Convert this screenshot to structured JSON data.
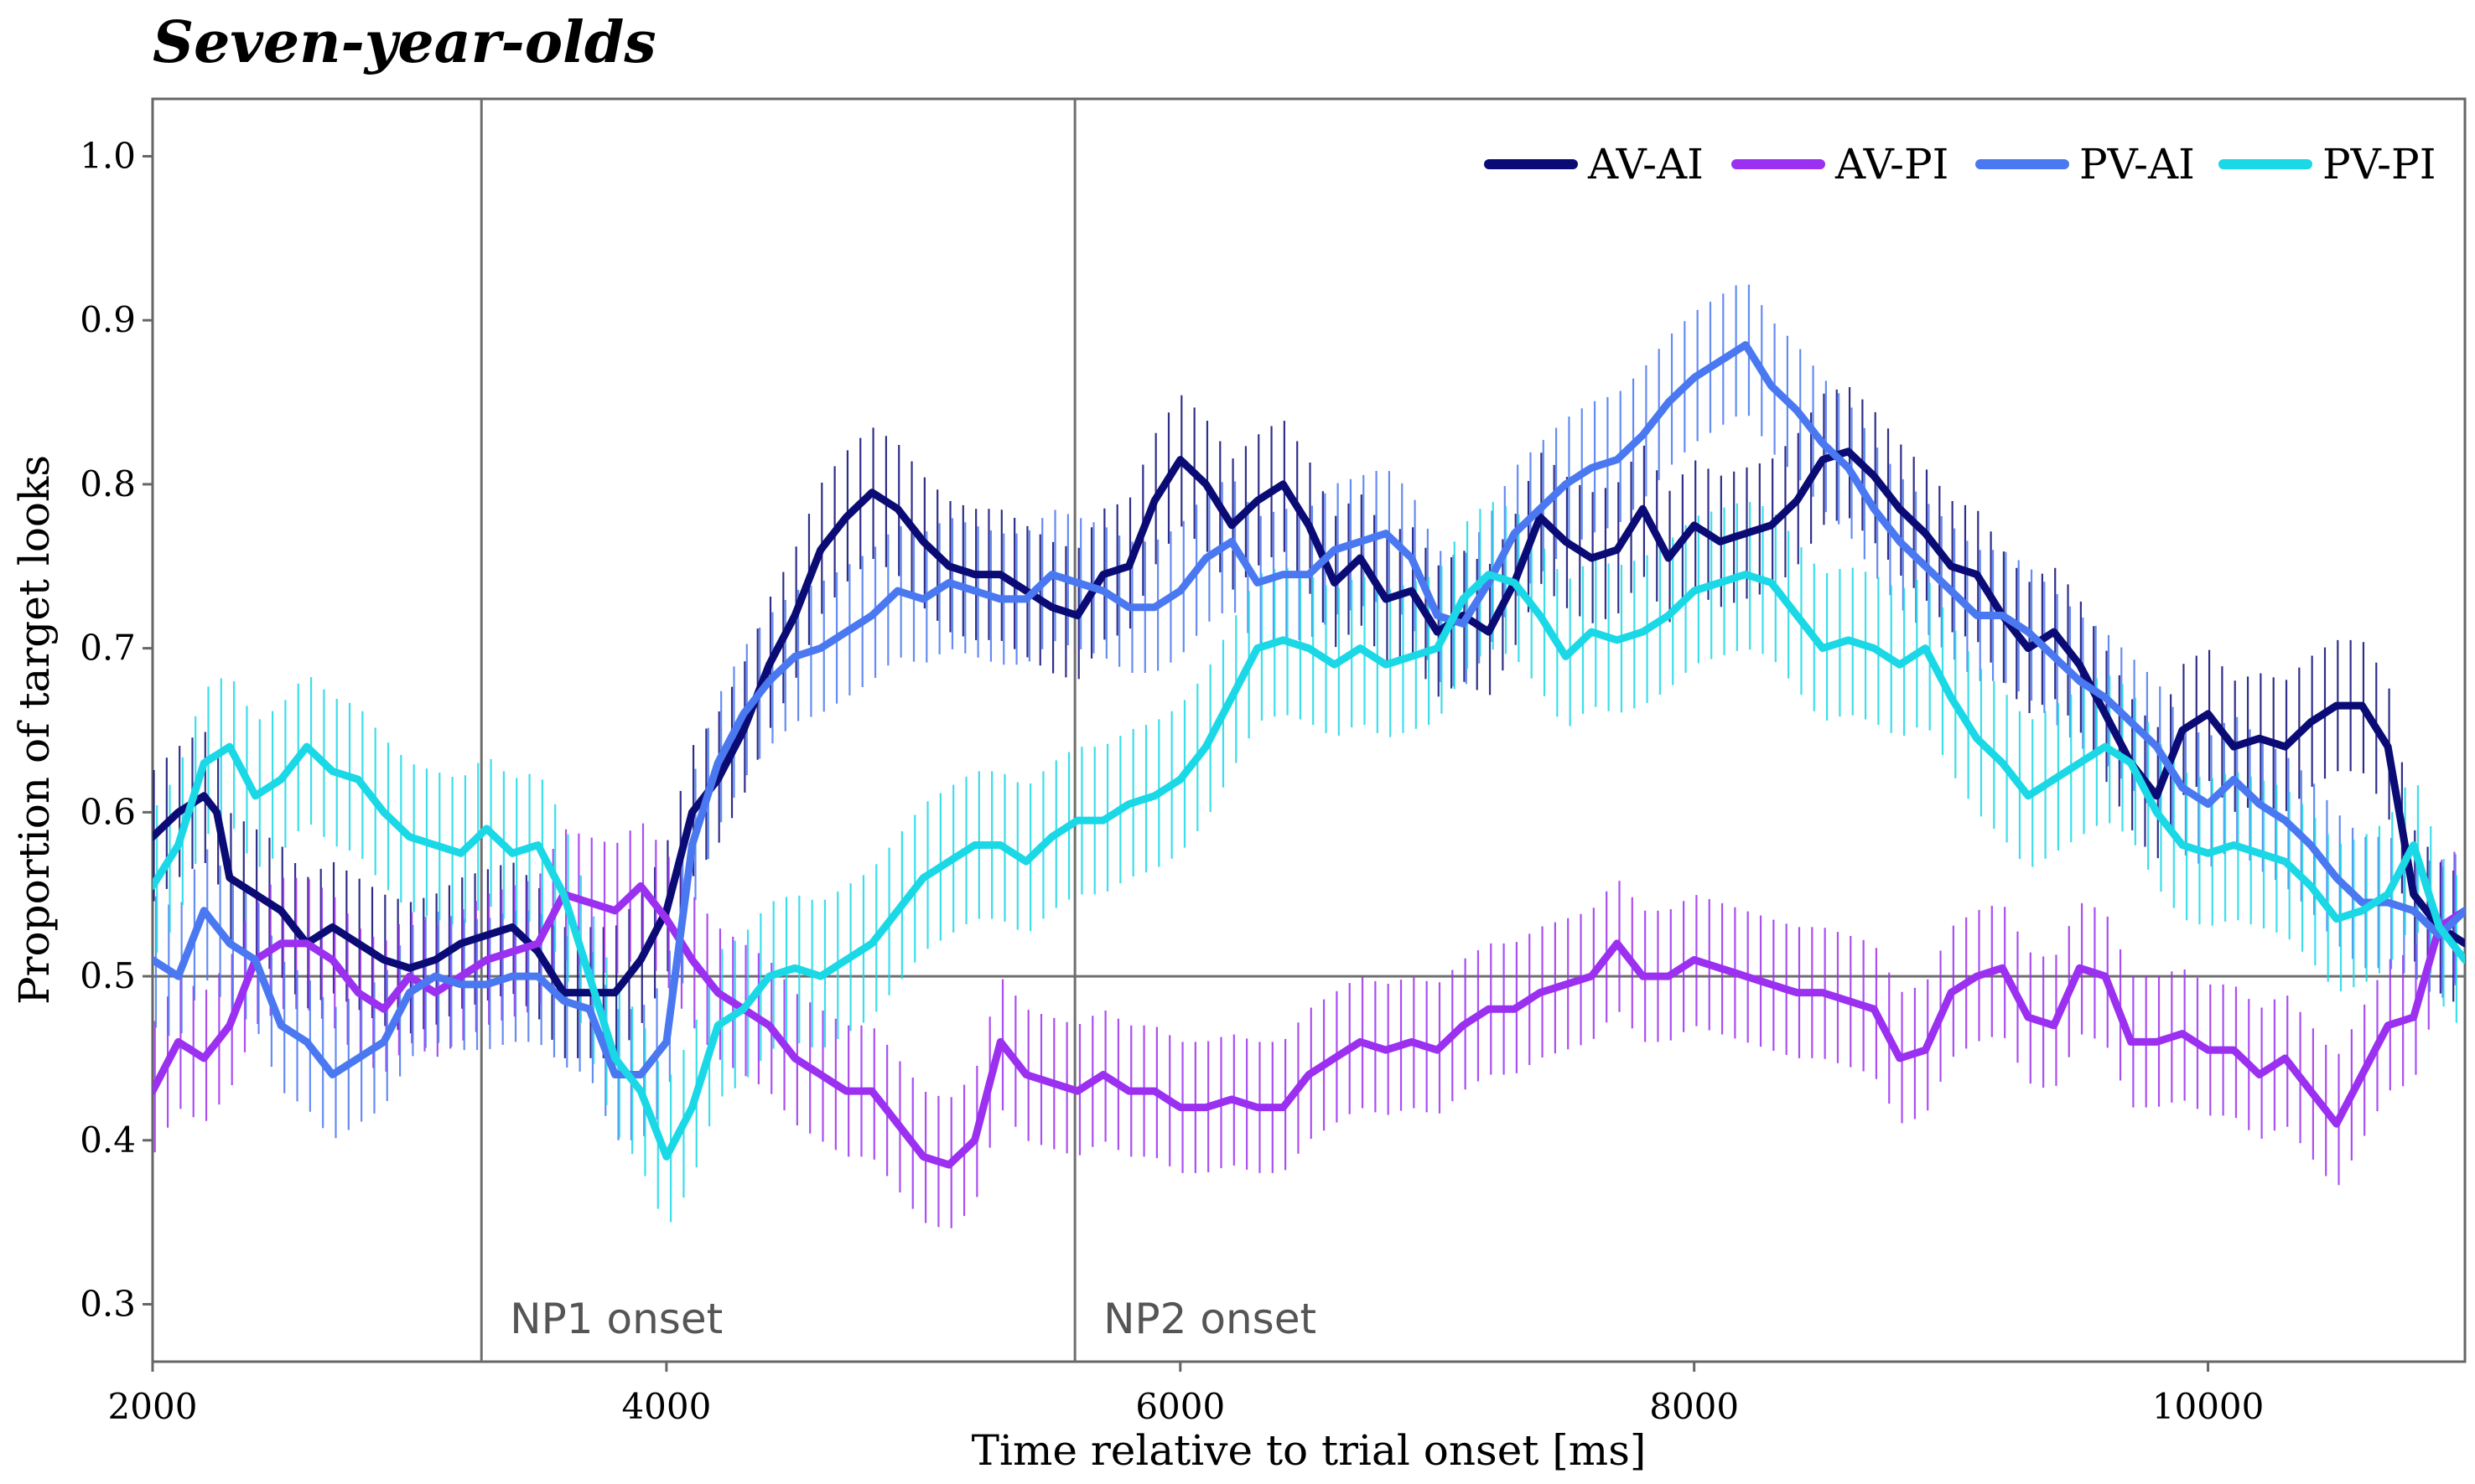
{
  "chart_data": {
    "type": "line",
    "title": "Seven-year-olds",
    "xlabel": "Time relative to trial onset [ms]",
    "ylabel": "Proportion of target looks",
    "xlim": [
      2000,
      11000
    ],
    "ylim": [
      0.265,
      1.035
    ],
    "x_ticks": [
      2000,
      4000,
      6000,
      8000,
      10000
    ],
    "y_ticks": [
      0.3,
      0.4,
      0.5,
      0.6,
      0.7,
      0.8,
      0.9,
      1.0
    ],
    "y_tick_labels": [
      "0.3",
      "0.4",
      "0.5",
      "0.6",
      "0.7",
      "0.8",
      "0.9",
      "1.0"
    ],
    "grid": false,
    "legend_position": "top-right",
    "reference_lines": {
      "horizontal": 0.5,
      "vertical": [
        {
          "x": 3280,
          "label": "NP1 onset"
        },
        {
          "x": 5590,
          "label": "NP2 onset"
        }
      ]
    },
    "error_bars": "vertical",
    "series": [
      {
        "name": "AV-AI",
        "color": "#0b0b75",
        "err": 0.04,
        "x": [
          2000,
          2100,
          2200,
          2250,
          2300,
          2400,
          2500,
          2600,
          2700,
          2800,
          2900,
          3000,
          3100,
          3200,
          3300,
          3400,
          3500,
          3600,
          3700,
          3800,
          3900,
          4000,
          4100,
          4200,
          4300,
          4400,
          4500,
          4600,
          4700,
          4800,
          4900,
          5000,
          5100,
          5200,
          5300,
          5400,
          5500,
          5600,
          5700,
          5800,
          5900,
          6000,
          6100,
          6200,
          6300,
          6400,
          6500,
          6600,
          6700,
          6800,
          6900,
          7000,
          7100,
          7200,
          7300,
          7400,
          7500,
          7600,
          7700,
          7800,
          7900,
          8000,
          8100,
          8200,
          8300,
          8400,
          8500,
          8600,
          8700,
          8800,
          8900,
          9000,
          9100,
          9200,
          9300,
          9400,
          9500,
          9600,
          9700,
          9800,
          9900,
          10000,
          10100,
          10200,
          10300,
          10400,
          10500,
          10600,
          10700,
          10800,
          10900,
          11000
        ],
        "y": [
          0.585,
          0.6,
          0.61,
          0.6,
          0.56,
          0.55,
          0.54,
          0.52,
          0.53,
          0.52,
          0.51,
          0.505,
          0.51,
          0.52,
          0.525,
          0.53,
          0.515,
          0.49,
          0.49,
          0.49,
          0.51,
          0.54,
          0.6,
          0.62,
          0.65,
          0.69,
          0.72,
          0.76,
          0.78,
          0.795,
          0.785,
          0.765,
          0.75,
          0.745,
          0.745,
          0.735,
          0.725,
          0.72,
          0.745,
          0.75,
          0.79,
          0.815,
          0.8,
          0.775,
          0.79,
          0.8,
          0.775,
          0.74,
          0.755,
          0.73,
          0.735,
          0.71,
          0.72,
          0.71,
          0.74,
          0.78,
          0.765,
          0.755,
          0.76,
          0.785,
          0.755,
          0.775,
          0.765,
          0.77,
          0.775,
          0.79,
          0.815,
          0.82,
          0.805,
          0.785,
          0.77,
          0.75,
          0.745,
          0.72,
          0.7,
          0.71,
          0.69,
          0.66,
          0.63,
          0.61,
          0.65,
          0.66,
          0.64,
          0.645,
          0.64,
          0.655,
          0.665,
          0.665,
          0.64,
          0.55,
          0.53,
          0.52
        ]
      },
      {
        "name": "AV-PI",
        "color": "#9b30f0",
        "err": 0.04,
        "x": [
          2000,
          2100,
          2200,
          2300,
          2400,
          2500,
          2600,
          2700,
          2800,
          2900,
          3000,
          3100,
          3200,
          3300,
          3400,
          3500,
          3600,
          3700,
          3800,
          3900,
          4000,
          4100,
          4200,
          4300,
          4400,
          4500,
          4600,
          4700,
          4800,
          4900,
          5000,
          5100,
          5200,
          5300,
          5400,
          5500,
          5600,
          5700,
          5800,
          5900,
          6000,
          6100,
          6200,
          6300,
          6400,
          6500,
          6600,
          6700,
          6800,
          6900,
          7000,
          7100,
          7200,
          7300,
          7400,
          7500,
          7600,
          7700,
          7800,
          7900,
          8000,
          8100,
          8200,
          8300,
          8400,
          8500,
          8600,
          8700,
          8800,
          8900,
          9000,
          9100,
          9200,
          9300,
          9400,
          9500,
          9600,
          9700,
          9800,
          9900,
          10000,
          10100,
          10200,
          10300,
          10400,
          10500,
          10600,
          10700,
          10800,
          10900,
          11000
        ],
        "y": [
          0.43,
          0.46,
          0.45,
          0.47,
          0.51,
          0.52,
          0.52,
          0.51,
          0.49,
          0.48,
          0.5,
          0.49,
          0.5,
          0.51,
          0.515,
          0.52,
          0.55,
          0.545,
          0.54,
          0.555,
          0.535,
          0.51,
          0.49,
          0.48,
          0.47,
          0.45,
          0.44,
          0.43,
          0.43,
          0.41,
          0.39,
          0.385,
          0.4,
          0.46,
          0.44,
          0.435,
          0.43,
          0.44,
          0.43,
          0.43,
          0.42,
          0.42,
          0.425,
          0.42,
          0.42,
          0.44,
          0.45,
          0.46,
          0.455,
          0.46,
          0.455,
          0.47,
          0.48,
          0.48,
          0.49,
          0.495,
          0.5,
          0.52,
          0.5,
          0.5,
          0.51,
          0.505,
          0.5,
          0.495,
          0.49,
          0.49,
          0.485,
          0.48,
          0.45,
          0.455,
          0.49,
          0.5,
          0.505,
          0.475,
          0.47,
          0.505,
          0.5,
          0.46,
          0.46,
          0.465,
          0.455,
          0.455,
          0.44,
          0.45,
          0.43,
          0.41,
          0.44,
          0.47,
          0.475,
          0.53,
          0.54
        ]
      },
      {
        "name": "PV-AI",
        "color": "#4a78f0",
        "err": 0.04,
        "x": [
          2000,
          2100,
          2200,
          2300,
          2400,
          2500,
          2600,
          2700,
          2800,
          2900,
          3000,
          3100,
          3200,
          3300,
          3400,
          3500,
          3600,
          3700,
          3800,
          3900,
          4000,
          4100,
          4200,
          4300,
          4400,
          4500,
          4600,
          4700,
          4800,
          4900,
          5000,
          5100,
          5200,
          5300,
          5400,
          5500,
          5600,
          5700,
          5800,
          5900,
          6000,
          6100,
          6200,
          6300,
          6400,
          6500,
          6600,
          6700,
          6800,
          6900,
          7000,
          7100,
          7200,
          7300,
          7400,
          7500,
          7600,
          7700,
          7800,
          7900,
          8000,
          8100,
          8200,
          8300,
          8400,
          8500,
          8600,
          8700,
          8800,
          8900,
          9000,
          9100,
          9200,
          9300,
          9400,
          9500,
          9600,
          9700,
          9800,
          9900,
          10000,
          10100,
          10200,
          10300,
          10400,
          10500,
          10600,
          10700,
          10800,
          10900,
          11000
        ],
        "y": [
          0.51,
          0.5,
          0.54,
          0.52,
          0.51,
          0.47,
          0.46,
          0.44,
          0.45,
          0.46,
          0.49,
          0.5,
          0.495,
          0.495,
          0.5,
          0.5,
          0.485,
          0.48,
          0.44,
          0.44,
          0.46,
          0.58,
          0.63,
          0.66,
          0.68,
          0.695,
          0.7,
          0.71,
          0.72,
          0.735,
          0.73,
          0.74,
          0.735,
          0.73,
          0.73,
          0.745,
          0.74,
          0.735,
          0.725,
          0.725,
          0.735,
          0.755,
          0.765,
          0.74,
          0.745,
          0.745,
          0.76,
          0.765,
          0.77,
          0.755,
          0.72,
          0.715,
          0.74,
          0.77,
          0.785,
          0.8,
          0.81,
          0.815,
          0.83,
          0.85,
          0.865,
          0.875,
          0.885,
          0.86,
          0.845,
          0.825,
          0.81,
          0.785,
          0.765,
          0.75,
          0.735,
          0.72,
          0.72,
          0.71,
          0.695,
          0.68,
          0.67,
          0.655,
          0.64,
          0.615,
          0.605,
          0.62,
          0.605,
          0.595,
          0.58,
          0.56,
          0.545,
          0.545,
          0.54,
          0.525,
          0.54
        ]
      },
      {
        "name": "PV-PI",
        "color": "#1ad8e6",
        "err": 0.045,
        "x": [
          2000,
          2100,
          2200,
          2300,
          2400,
          2500,
          2600,
          2700,
          2800,
          2900,
          3000,
          3100,
          3200,
          3300,
          3400,
          3500,
          3600,
          3700,
          3800,
          3900,
          4000,
          4100,
          4200,
          4300,
          4400,
          4500,
          4600,
          4700,
          4800,
          4900,
          5000,
          5100,
          5200,
          5300,
          5400,
          5500,
          5600,
          5700,
          5800,
          5900,
          6000,
          6100,
          6200,
          6300,
          6400,
          6500,
          6600,
          6700,
          6800,
          6900,
          7000,
          7100,
          7200,
          7300,
          7400,
          7500,
          7600,
          7700,
          7800,
          7900,
          8000,
          8100,
          8200,
          8300,
          8400,
          8500,
          8600,
          8700,
          8800,
          8900,
          9000,
          9100,
          9200,
          9300,
          9400,
          9500,
          9600,
          9700,
          9800,
          9900,
          10000,
          10100,
          10200,
          10300,
          10400,
          10500,
          10600,
          10700,
          10800,
          10900,
          11000
        ],
        "y": [
          0.555,
          0.58,
          0.63,
          0.64,
          0.61,
          0.62,
          0.64,
          0.625,
          0.62,
          0.6,
          0.585,
          0.58,
          0.575,
          0.59,
          0.575,
          0.58,
          0.55,
          0.5,
          0.45,
          0.43,
          0.39,
          0.42,
          0.47,
          0.48,
          0.5,
          0.505,
          0.5,
          0.51,
          0.52,
          0.54,
          0.56,
          0.57,
          0.58,
          0.58,
          0.57,
          0.585,
          0.595,
          0.595,
          0.605,
          0.61,
          0.62,
          0.64,
          0.67,
          0.7,
          0.705,
          0.7,
          0.69,
          0.7,
          0.69,
          0.695,
          0.7,
          0.73,
          0.745,
          0.74,
          0.72,
          0.695,
          0.71,
          0.705,
          0.71,
          0.72,
          0.735,
          0.74,
          0.745,
          0.74,
          0.72,
          0.7,
          0.705,
          0.7,
          0.69,
          0.7,
          0.67,
          0.645,
          0.63,
          0.61,
          0.62,
          0.63,
          0.64,
          0.63,
          0.6,
          0.58,
          0.575,
          0.58,
          0.575,
          0.57,
          0.555,
          0.535,
          0.54,
          0.55,
          0.58,
          0.53,
          0.51
        ]
      }
    ]
  }
}
